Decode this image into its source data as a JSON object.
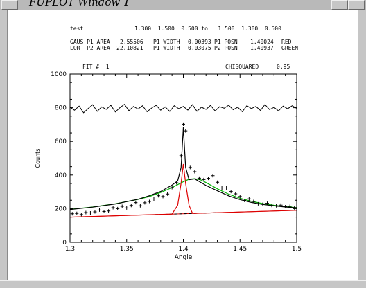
{
  "window": {
    "title": "FUPLOT Window 1"
  },
  "header": {
    "line1": {
      "name": "test",
      "vals": "1.300  1.500  0.500 to   1.500  1.300  0.500"
    },
    "line2": {
      "label": "GAUS P1 AREA",
      "area": "2.55506",
      "w_label": "P1 WIDTH",
      "width": "0.00393",
      "p_label": "P1 POSN",
      "posn": "1.40024",
      "color": "RED"
    },
    "line3": {
      "label": "LOR_ P2 AREA",
      "area": "22.10821",
      "w_label": "P1 WIDTH",
      "width": "0.03075",
      "p_label": "P2 POSN",
      "posn": "1.40937",
      "color": "GREEN"
    },
    "fit_label": "FIT #  1",
    "chi_label": "CHISQUARED",
    "chi_value": "0.95"
  },
  "chart_data": {
    "type": "scatter",
    "xlabel": "Angle",
    "ylabel": "Counts",
    "xlim": [
      1.3,
      1.5
    ],
    "ylim": [
      0,
      1000
    ],
    "x_ticks": [
      "1.3",
      "1.35",
      "1.4",
      "1.45",
      "1.5"
    ],
    "y_ticks": [
      "0",
      "200",
      "400",
      "600",
      "800",
      "1000"
    ],
    "colors": {
      "data": "#000000",
      "fit_total": "#000000",
      "gaussian": "#dd0000",
      "lorentzian": "#00b000",
      "background": "#dd0000",
      "residual": "#000000"
    },
    "series": [
      {
        "values": [
          [
            1.302,
            170
          ],
          [
            1.306,
            172
          ],
          [
            1.31,
            165
          ],
          [
            1.314,
            177
          ],
          [
            1.318,
            175
          ],
          [
            1.322,
            181
          ],
          [
            1.326,
            192
          ],
          [
            1.33,
            183
          ],
          [
            1.334,
            186
          ],
          [
            1.338,
            206
          ],
          [
            1.342,
            200
          ],
          [
            1.346,
            214
          ],
          [
            1.35,
            204
          ],
          [
            1.354,
            219
          ],
          [
            1.358,
            236
          ],
          [
            1.362,
            217
          ],
          [
            1.366,
            235
          ],
          [
            1.37,
            243
          ],
          [
            1.374,
            257
          ],
          [
            1.378,
            277
          ],
          [
            1.382,
            272
          ],
          [
            1.386,
            287
          ],
          [
            1.39,
            325
          ],
          [
            1.394,
            354
          ],
          [
            1.398,
            515
          ],
          [
            1.4,
            702
          ],
          [
            1.402,
            662
          ],
          [
            1.406,
            445
          ],
          [
            1.41,
            420
          ],
          [
            1.414,
            381
          ],
          [
            1.418,
            373
          ],
          [
            1.422,
            380
          ],
          [
            1.426,
            396
          ],
          [
            1.43,
            357
          ],
          [
            1.434,
            323
          ],
          [
            1.438,
            323
          ],
          [
            1.442,
            302
          ],
          [
            1.446,
            288
          ],
          [
            1.45,
            272
          ],
          [
            1.454,
            249
          ],
          [
            1.458,
            258
          ],
          [
            1.462,
            243
          ],
          [
            1.466,
            229
          ],
          [
            1.47,
            226
          ],
          [
            1.474,
            232
          ],
          [
            1.478,
            219
          ],
          [
            1.482,
            217
          ],
          [
            1.486,
            221
          ],
          [
            1.49,
            212
          ],
          [
            1.494,
            214
          ],
          [
            1.498,
            204
          ]
        ]
      },
      {
        "values": [
          [
            1.3,
            195
          ],
          [
            1.32,
            209
          ],
          [
            1.34,
            228
          ],
          [
            1.36,
            256
          ],
          [
            1.37,
            277
          ],
          [
            1.38,
            302
          ],
          [
            1.39,
            340
          ],
          [
            1.395,
            365
          ],
          [
            1.398,
            444
          ],
          [
            1.4,
            683
          ],
          [
            1.402,
            446
          ],
          [
            1.405,
            372
          ],
          [
            1.41,
            377
          ],
          [
            1.42,
            338
          ],
          [
            1.43,
            306
          ],
          [
            1.44,
            276
          ],
          [
            1.45,
            254
          ],
          [
            1.46,
            237
          ],
          [
            1.47,
            225
          ],
          [
            1.48,
            217
          ],
          [
            1.49,
            210
          ],
          [
            1.5,
            205
          ]
        ]
      },
      {
        "values": [
          [
            1.3,
            196
          ],
          [
            1.32,
            210
          ],
          [
            1.34,
            229
          ],
          [
            1.36,
            255
          ],
          [
            1.37,
            272
          ],
          [
            1.38,
            296
          ],
          [
            1.39,
            325
          ],
          [
            1.395,
            343
          ],
          [
            1.4,
            360
          ],
          [
            1.405,
            375
          ],
          [
            1.41,
            378
          ],
          [
            1.415,
            372
          ],
          [
            1.42,
            355
          ],
          [
            1.43,
            318
          ],
          [
            1.44,
            286
          ],
          [
            1.45,
            262
          ],
          [
            1.46,
            244
          ],
          [
            1.47,
            230
          ],
          [
            1.48,
            220
          ],
          [
            1.49,
            212
          ],
          [
            1.5,
            206
          ]
        ]
      },
      {
        "values": [
          [
            1.3,
            150
          ],
          [
            1.37,
            164
          ],
          [
            1.39,
            168
          ],
          [
            1.395,
            220
          ],
          [
            1.398,
            350
          ],
          [
            1.4,
            465
          ],
          [
            1.402,
            350
          ],
          [
            1.405,
            220
          ],
          [
            1.408,
            173
          ],
          [
            1.41,
            172
          ],
          [
            1.5,
            190
          ]
        ]
      },
      {
        "values": [
          [
            1.3,
            150
          ],
          [
            1.5,
            190
          ]
        ]
      },
      {
        "values": [
          [
            1.3,
            802
          ],
          [
            1.304,
            785
          ],
          [
            1.308,
            810
          ],
          [
            1.312,
            770
          ],
          [
            1.316,
            795
          ],
          [
            1.32,
            818
          ],
          [
            1.324,
            778
          ],
          [
            1.328,
            805
          ],
          [
            1.332,
            790
          ],
          [
            1.336,
            815
          ],
          [
            1.34,
            775
          ],
          [
            1.344,
            800
          ],
          [
            1.348,
            820
          ],
          [
            1.352,
            782
          ],
          [
            1.356,
            808
          ],
          [
            1.36,
            792
          ],
          [
            1.364,
            812
          ],
          [
            1.368,
            776
          ],
          [
            1.372,
            798
          ],
          [
            1.376,
            815
          ],
          [
            1.38,
            785
          ],
          [
            1.384,
            805
          ],
          [
            1.388,
            778
          ],
          [
            1.392,
            812
          ],
          [
            1.396,
            794
          ],
          [
            1.4,
            808
          ],
          [
            1.404,
            786
          ],
          [
            1.408,
            818
          ],
          [
            1.412,
            779
          ],
          [
            1.416,
            803
          ],
          [
            1.42,
            790
          ],
          [
            1.424,
            814
          ],
          [
            1.428,
            781
          ],
          [
            1.432,
            806
          ],
          [
            1.436,
            797
          ],
          [
            1.44,
            815
          ],
          [
            1.444,
            788
          ],
          [
            1.448,
            803
          ],
          [
            1.452,
            776
          ],
          [
            1.456,
            812
          ],
          [
            1.46,
            795
          ],
          [
            1.464,
            808
          ],
          [
            1.468,
            784
          ],
          [
            1.472,
            819
          ],
          [
            1.476,
            789
          ],
          [
            1.48,
            802
          ],
          [
            1.484,
            781
          ],
          [
            1.488,
            810
          ],
          [
            1.492,
            794
          ],
          [
            1.496,
            812
          ],
          [
            1.5,
            796
          ]
        ]
      }
    ]
  }
}
